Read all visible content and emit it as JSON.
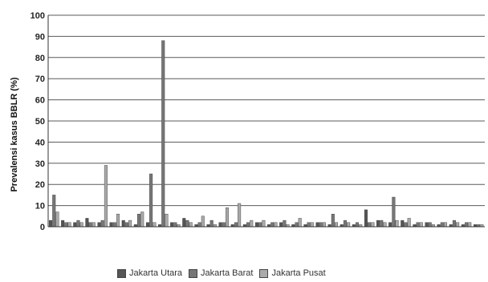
{
  "chart_data": {
    "type": "bar",
    "title": "",
    "xlabel": "",
    "ylabel": "Prevalensi kasus BBLR (%)",
    "ylim": [
      0,
      100
    ],
    "yticks": [
      "0",
      "10",
      "20",
      "30",
      "40",
      "50",
      "60",
      "70",
      "80",
      "90",
      "100"
    ],
    "grid": true,
    "legend_position": "bottom",
    "series": [
      {
        "name": "Jakarta Utara",
        "color": "#555555",
        "values": [
          3,
          3,
          2,
          4,
          2,
          2,
          3,
          1,
          2,
          1,
          2,
          4,
          1,
          1,
          2,
          1,
          1,
          2,
          1,
          2,
          1,
          1,
          2,
          1,
          1,
          1,
          8,
          3,
          2,
          3,
          1,
          2,
          1,
          1,
          1,
          1
        ]
      },
      {
        "name": "Jakarta Barat",
        "color": "#777777",
        "values": [
          15,
          2,
          3,
          2,
          3,
          2,
          2,
          6,
          25,
          88,
          2,
          3,
          2,
          3,
          2,
          2,
          2,
          2,
          2,
          3,
          2,
          2,
          2,
          6,
          3,
          2,
          2,
          3,
          14,
          2,
          2,
          2,
          2,
          3,
          2,
          1
        ]
      },
      {
        "name": "Jakarta Pusat",
        "color": "#aaaaaa",
        "values": [
          7,
          2,
          2,
          2,
          29,
          6,
          3,
          7,
          2,
          6,
          1,
          2,
          5,
          1,
          9,
          11,
          3,
          3,
          2,
          1,
          4,
          2,
          2,
          2,
          2,
          1,
          2,
          2,
          3,
          4,
          2,
          1,
          2,
          2,
          2,
          1
        ]
      }
    ]
  }
}
